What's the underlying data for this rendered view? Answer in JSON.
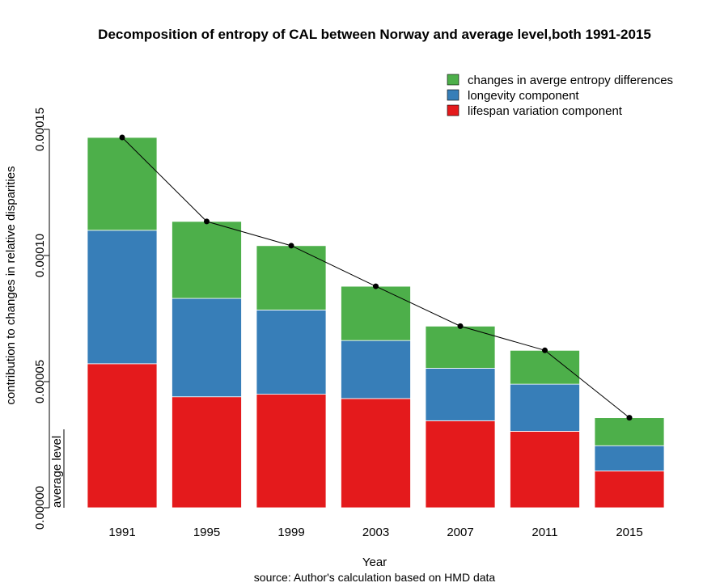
{
  "chart_data": {
    "type": "bar",
    "stacked": true,
    "title": "Decomposition of entropy of CAL between Norway and average level,both 1991-2015",
    "xlabel": "Year",
    "ylabel": "contribution to changes in relative disparities",
    "inner_label": "average level",
    "source": "source: Author's calculation based on HMD data",
    "categories": [
      "1991",
      "1995",
      "1999",
      "2003",
      "2007",
      "2011",
      "2015"
    ],
    "ylim": [
      0,
      0.00015
    ],
    "yticks": [
      0,
      5e-05,
      0.0001,
      0.00015
    ],
    "ytick_labels": [
      "0.00000",
      "0.00005",
      "0.00010",
      "0.00015"
    ],
    "grid": false,
    "legend_position": "top-right",
    "series": [
      {
        "name": "lifespan variation component",
        "color": "#E41A1C",
        "values": [
          5.71e-05,
          4.4e-05,
          4.5e-05,
          4.33e-05,
          3.45e-05,
          3.03e-05,
          1.46e-05
        ]
      },
      {
        "name": "longevity component",
        "color": "#377EB8",
        "values": [
          5.29e-05,
          3.9e-05,
          3.34e-05,
          2.3e-05,
          2.08e-05,
          1.87e-05,
          1e-05
        ]
      },
      {
        "name": "changes in averge entropy differences",
        "color": "#4DAF4A",
        "values": [
          3.68e-05,
          3.05e-05,
          2.55e-05,
          2.15e-05,
          1.67e-05,
          1.34e-05,
          1.11e-05
        ]
      }
    ],
    "line": {
      "color": "#000000",
      "values": [
        0.0001468,
        0.0001135,
        0.0001039,
        8.78e-05,
        7.2e-05,
        6.24e-05,
        3.57e-05
      ]
    },
    "legend_order": [
      "changes in averge entropy differences",
      "longevity component",
      "lifespan variation component"
    ]
  }
}
